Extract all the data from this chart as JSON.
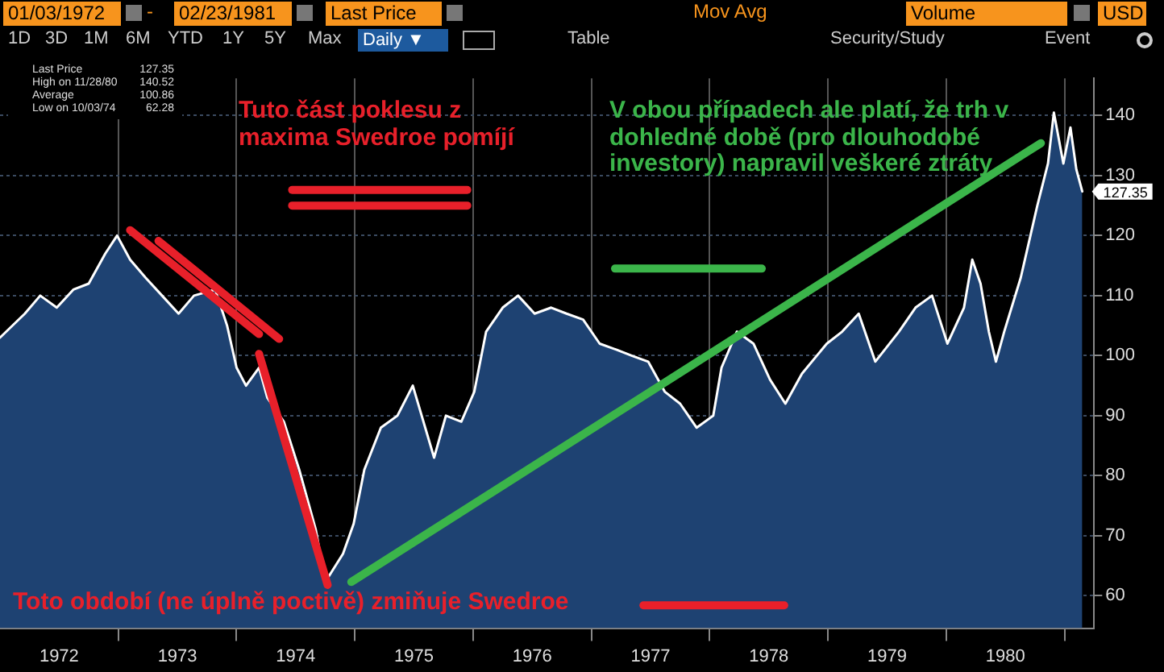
{
  "chart_data": {
    "type": "area",
    "x": [
      1972.0,
      1972.21,
      1972.34,
      1972.48,
      1972.62,
      1972.75,
      1972.89,
      1972.99,
      1973.1,
      1973.23,
      1973.37,
      1973.51,
      1973.64,
      1973.82,
      1973.92,
      1974.0,
      1974.08,
      1974.19,
      1974.26,
      1974.4,
      1974.53,
      1974.67,
      1974.75,
      1974.9,
      1974.99,
      1975.08,
      1975.22,
      1975.36,
      1975.49,
      1975.67,
      1975.77,
      1975.9,
      1976.01,
      1976.11,
      1976.25,
      1976.38,
      1976.52,
      1976.66,
      1976.79,
      1976.93,
      1977.07,
      1977.21,
      1977.34,
      1977.48,
      1977.62,
      1977.75,
      1977.89,
      1978.03,
      1978.1,
      1978.23,
      1978.37,
      1978.51,
      1978.64,
      1978.78,
      1978.99,
      1979.12,
      1979.26,
      1979.4,
      1979.6,
      1979.74,
      1979.88,
      1980.01,
      1980.15,
      1980.22,
      1980.29,
      1980.36,
      1980.42,
      1980.49,
      1980.63,
      1980.77,
      1980.86,
      1980.91,
      1980.99,
      1981.05,
      1981.1,
      1981.15
    ],
    "series": [
      {
        "color": "#1e4272",
        "values": [
          103,
          107,
          110,
          108,
          111,
          112,
          117,
          120,
          116,
          113,
          110,
          107,
          110,
          111,
          105,
          98,
          95,
          98,
          93,
          89,
          81,
          71,
          62.3,
          67,
          72,
          81,
          88,
          90,
          95,
          83,
          90,
          89,
          94,
          104,
          108,
          110,
          107,
          108,
          107,
          106,
          102,
          101,
          100,
          99,
          94,
          92,
          88,
          90,
          98,
          104,
          102,
          96,
          92,
          97,
          102,
          104,
          107,
          99,
          104,
          108,
          110,
          102,
          108,
          116,
          112,
          104,
          99,
          104,
          113,
          125,
          132,
          140.5,
          132,
          138,
          131,
          127.35
        ]
      },
      {
        "type": "line",
        "color": "#e8202a",
        "x": [
          1973.1,
          1974.19
        ],
        "values": [
          120.9,
          103.6
        ]
      },
      {
        "type": "line",
        "color": "#e8202a",
        "x": [
          1973.34,
          1974.36
        ],
        "values": [
          119.1,
          102.8
        ]
      },
      {
        "type": "line",
        "color": "#e8202a",
        "x": [
          1974.19,
          1974.77
        ],
        "values": [
          100.3,
          61.8
        ]
      },
      {
        "type": "line",
        "color": "#3bb54a",
        "x": [
          1974.97,
          1980.8
        ],
        "values": [
          62.3,
          135.4
        ]
      },
      {
        "type": "line",
        "color": "#e8202a",
        "x": [
          1974.47,
          1975.95
        ],
        "values": [
          127.6,
          127.6
        ]
      },
      {
        "type": "line",
        "color": "#e8202a",
        "x": [
          1974.47,
          1975.95
        ],
        "values": [
          125.0,
          125.0
        ]
      },
      {
        "type": "line",
        "color": "#3bb54a",
        "x": [
          1977.2,
          1978.44
        ],
        "values": [
          114.5,
          114.5
        ]
      },
      {
        "type": "line",
        "color": "#e8202a",
        "x": [
          1977.44,
          1978.63
        ],
        "values": [
          58.4,
          58.4
        ]
      }
    ],
    "xlim": [
      1972,
      1981.25
    ],
    "xticks": [
      {
        "value": 1972.5,
        "label": "1972"
      },
      {
        "value": 1973,
        "label": null
      },
      {
        "value": 1973.5,
        "label": "1973"
      },
      {
        "value": 1974,
        "label": null
      },
      {
        "value": 1974.5,
        "label": "1974"
      },
      {
        "value": 1975,
        "label": null
      },
      {
        "value": 1975.5,
        "label": "1975"
      },
      {
        "value": 1976,
        "label": null
      },
      {
        "value": 1976.5,
        "label": "1976"
      },
      {
        "value": 1977,
        "label": null
      },
      {
        "value": 1977.5,
        "label": "1977"
      },
      {
        "value": 1978,
        "label": null
      },
      {
        "value": 1978.5,
        "label": "1978"
      },
      {
        "value": 1979,
        "label": null
      },
      {
        "value": 1979.5,
        "label": "1979"
      },
      {
        "value": 1980,
        "label": null
      },
      {
        "value": 1980.5,
        "label": "1980"
      },
      {
        "value": 1981,
        "label": null
      }
    ],
    "ylim": [
      54.6,
      146.2
    ],
    "yticks": [
      60,
      70,
      80,
      90,
      100,
      110,
      120,
      130,
      140
    ],
    "grid": true,
    "legend": false,
    "marker": "none",
    "line_style": "solid",
    "annotations": [
      "01/03/1972",
      "-",
      "02/23/1981",
      "Last Price",
      "Mov Avg",
      "Volume",
      "USD",
      "1D",
      "3D",
      "1M",
      "6M",
      "YTD",
      "1Y",
      "5Y",
      "Max",
      "Daily ▼",
      "Table",
      "Security/Study",
      "Event",
      "Last Price",
      "127.35",
      "High on 11/28/80",
      "140.52",
      "Average",
      "100.86",
      "Low on 10/03/74",
      "62.28",
      "Tuto část poklesu z maxima Swedroe pomíjí",
      "V obou případech ale platí, že trh v dohledné době (pro dlouhodobé investory) napravil veškeré ztráty",
      "Toto období (ne úplně poctivě) zmiňuje Swedroe",
      {
        "text": "127.35",
        "x": 1981.15,
        "y": 127.35
      }
    ]
  }
}
